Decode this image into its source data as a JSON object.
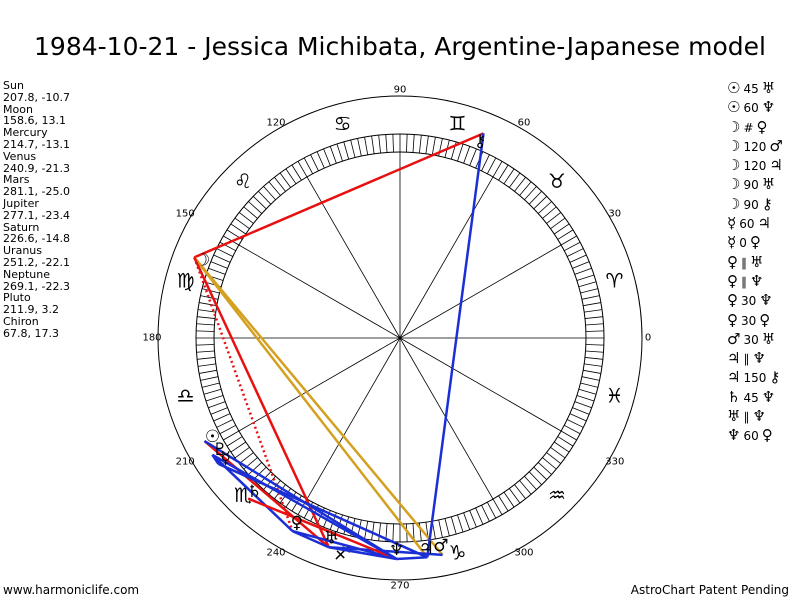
{
  "title": "1984-10-21 - Jessica Michibata, Argentine-Japanese model",
  "positions": [
    {
      "name": "Sun",
      "value": "207.8, -10.7"
    },
    {
      "name": "Moon",
      "value": "158.6, 13.1"
    },
    {
      "name": "Mercury",
      "value": "214.7, -13.1"
    },
    {
      "name": "Venus",
      "value": "240.9, -21.3"
    },
    {
      "name": "Mars",
      "value": "281.1, -25.0"
    },
    {
      "name": "Jupiter",
      "value": "277.1, -23.4"
    },
    {
      "name": "Saturn",
      "value": "226.6, -14.8"
    },
    {
      "name": "Uranus",
      "value": "251.2, -22.1"
    },
    {
      "name": "Neptune",
      "value": "269.1, -22.3"
    },
    {
      "name": "Pluto",
      "value": "211.9, 3.2"
    },
    {
      "name": "Chiron",
      "value": "67.8, 17.3"
    }
  ],
  "aspects": [
    {
      "p1": "☉",
      "angle": "45",
      "p2": "♅"
    },
    {
      "p1": "☉",
      "angle": "60",
      "p2": "♆"
    },
    {
      "p1": "☽",
      "angle": "#",
      "p2": "♀"
    },
    {
      "p1": "☽",
      "angle": "120",
      "p2": "♂"
    },
    {
      "p1": "☽",
      "angle": "120",
      "p2": "♃"
    },
    {
      "p1": "☽",
      "angle": "90",
      "p2": "♅"
    },
    {
      "p1": "☽",
      "angle": "90",
      "p2": "⚷"
    },
    {
      "p1": "☿",
      "angle": "60",
      "p2": "♃"
    },
    {
      "p1": "☿",
      "angle": "0",
      "p2": "♀"
    },
    {
      "p1": "♀",
      "angle": "∥",
      "p2": "♅"
    },
    {
      "p1": "♀",
      "angle": "∥",
      "p2": "♆"
    },
    {
      "p1": "♀",
      "angle": "30",
      "p2": "♆"
    },
    {
      "p1": "♀",
      "angle": "30",
      "p2": "♀"
    },
    {
      "p1": "♂",
      "angle": "30",
      "p2": "♅"
    },
    {
      "p1": "♃",
      "angle": "∥",
      "p2": "♆"
    },
    {
      "p1": "♃",
      "angle": "150",
      "p2": "⚷"
    },
    {
      "p1": "♄",
      "angle": "45",
      "p2": "♆"
    },
    {
      "p1": "♅",
      "angle": "∥",
      "p2": "♆"
    },
    {
      "p1": "♆",
      "angle": "60",
      "p2": "♀"
    }
  ],
  "footer": {
    "left": "www.harmoniclife.com",
    "right": "AstroChart Patent Pending"
  },
  "chart_data": {
    "type": "scatter",
    "title": "1984-10-21 - Jessica Michibata, Argentine-Japanese model",
    "degree_labels": [
      "0",
      "30",
      "60",
      "90",
      "120",
      "150",
      "180",
      "210",
      "240",
      "270",
      "300",
      "330"
    ],
    "zodiac_signs": [
      "♈",
      "♉",
      "♊",
      "♋",
      "♌",
      "♍",
      "♎",
      "♏",
      "♐",
      "♑",
      "♒",
      "♓"
    ],
    "planets": [
      {
        "name": "Sun",
        "glyph": "☉",
        "longitude": 207.8
      },
      {
        "name": "Moon",
        "glyph": "☽",
        "longitude": 158.6
      },
      {
        "name": "Mercury",
        "glyph": "☿",
        "longitude": 214.7
      },
      {
        "name": "Venus",
        "glyph": "♀",
        "longitude": 240.9
      },
      {
        "name": "Mars",
        "glyph": "♂",
        "longitude": 281.1
      },
      {
        "name": "Jupiter",
        "glyph": "♃",
        "longitude": 277.1
      },
      {
        "name": "Saturn",
        "glyph": "♄",
        "longitude": 226.6
      },
      {
        "name": "Uranus",
        "glyph": "♅",
        "longitude": 251.2
      },
      {
        "name": "Neptune",
        "glyph": "♆",
        "longitude": 269.1
      },
      {
        "name": "Pluto",
        "glyph": "♇",
        "longitude": 211.9
      },
      {
        "name": "Chiron",
        "glyph": "⚷",
        "longitude": 67.8
      }
    ],
    "aspect_lines": [
      {
        "from": "Moon",
        "to": "Chiron",
        "color": "#e81010",
        "style": "solid"
      },
      {
        "from": "Moon",
        "to": "Mars",
        "color": "#d4a020",
        "style": "solid"
      },
      {
        "from": "Moon",
        "to": "Jupiter",
        "color": "#d4a020",
        "style": "solid"
      },
      {
        "from": "Moon",
        "to": "Uranus",
        "color": "#e81010",
        "style": "solid"
      },
      {
        "from": "Moon",
        "to": "Venus",
        "color": "#e81010",
        "style": "dotted"
      },
      {
        "from": "Sun",
        "to": "Uranus",
        "color": "#e81010",
        "style": "solid"
      },
      {
        "from": "Sun",
        "to": "Neptune",
        "color": "#1b2fd6",
        "style": "solid"
      },
      {
        "from": "Mercury",
        "to": "Jupiter",
        "color": "#1b2fd6",
        "style": "solid"
      },
      {
        "from": "Mercury",
        "to": "Pluto",
        "color": "#1b2fd6",
        "style": "solid"
      },
      {
        "from": "Venus",
        "to": "Uranus",
        "color": "#1b2fd6",
        "style": "solid"
      },
      {
        "from": "Venus",
        "to": "Neptune",
        "color": "#1b2fd6",
        "style": "solid"
      },
      {
        "from": "Venus",
        "to": "Pluto",
        "color": "#1b2fd6",
        "style": "solid"
      },
      {
        "from": "Mars",
        "to": "Uranus",
        "color": "#1b2fd6",
        "style": "solid"
      },
      {
        "from": "Jupiter",
        "to": "Neptune",
        "color": "#1b2fd6",
        "style": "solid"
      },
      {
        "from": "Jupiter",
        "to": "Chiron",
        "color": "#1b2fd6",
        "style": "solid"
      },
      {
        "from": "Saturn",
        "to": "Neptune",
        "color": "#e81010",
        "style": "solid"
      },
      {
        "from": "Uranus",
        "to": "Neptune",
        "color": "#1b2fd6",
        "style": "solid"
      },
      {
        "from": "Neptune",
        "to": "Pluto",
        "color": "#1b2fd6",
        "style": "solid"
      }
    ]
  }
}
